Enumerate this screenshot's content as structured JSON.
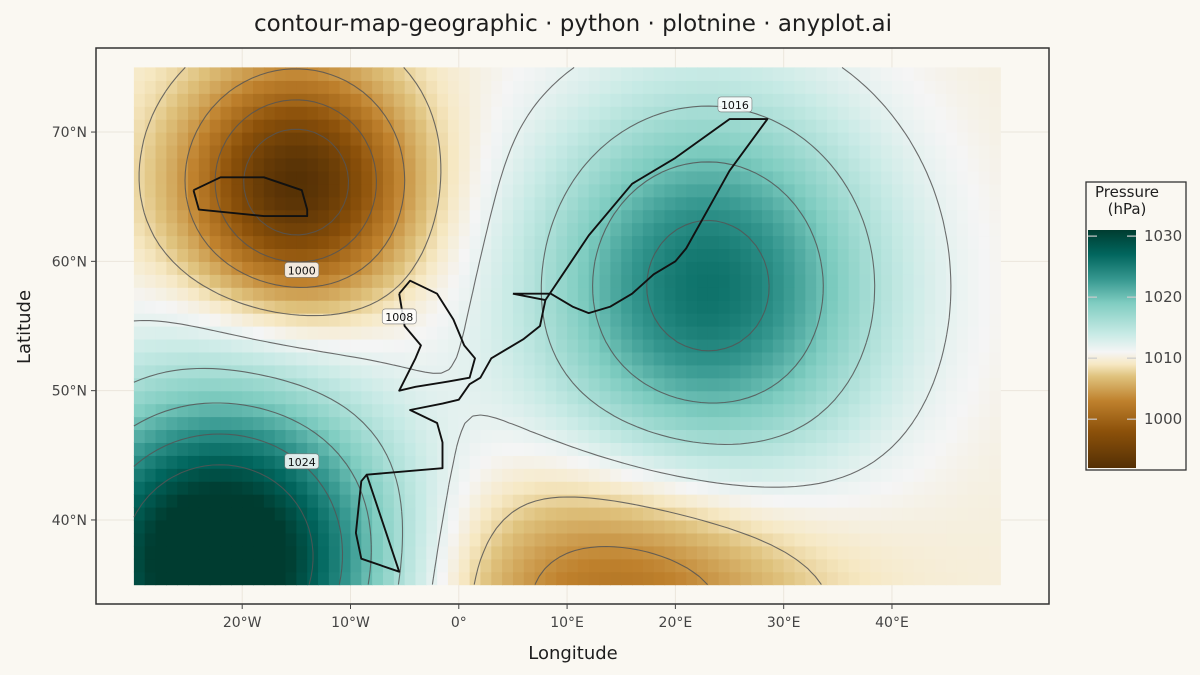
{
  "title": "contour-map-geographic · python · plotnine · anyplot.ai",
  "chart_data": {
    "type": "heatmap",
    "title": "contour-map-geographic · python · plotnine · anyplot.ai",
    "xlabel": "Longitude",
    "ylabel": "Latitude",
    "xlim": [
      -33.5,
      54.5
    ],
    "ylim": [
      33.5,
      76.5
    ],
    "data_extent": {
      "lon": [
        -30,
        50
      ],
      "lat": [
        35,
        75
      ]
    },
    "x_ticks": [
      {
        "value": -20,
        "label": "20°W"
      },
      {
        "value": -10,
        "label": "10°W"
      },
      {
        "value": 0,
        "label": "0°"
      },
      {
        "value": 10,
        "label": "10°E"
      },
      {
        "value": 20,
        "label": "20°E"
      },
      {
        "value": 30,
        "label": "30°E"
      },
      {
        "value": 40,
        "label": "40°E"
      }
    ],
    "y_ticks": [
      {
        "value": 40,
        "label": "40°N"
      },
      {
        "value": 50,
        "label": "50°N"
      },
      {
        "value": 60,
        "label": "60°N"
      },
      {
        "value": 70,
        "label": "70°N"
      }
    ],
    "grid": true,
    "field": {
      "variable": "Pressure",
      "unit": "hPa",
      "base": 1010,
      "centers": [
        {
          "lon": -15,
          "lat": 66,
          "amp": -18,
          "sx": 7,
          "sy": 6
        },
        {
          "lon": -22,
          "lat": 37,
          "amp": 25,
          "sx": 11,
          "sy": 9
        },
        {
          "lon": 23,
          "lat": 58,
          "amp": 16,
          "sx": 11,
          "sy": 10
        },
        {
          "lon": 15,
          "lat": 34,
          "amp": -9,
          "sx": 12,
          "sy": 7
        }
      ]
    },
    "contour_levels": [
      996,
      1000,
      1004,
      1008,
      1012,
      1016,
      1020,
      1024,
      1028
    ],
    "contour_labels": [
      {
        "text": "1000",
        "lon": -14.5,
        "lat": 59.3
      },
      {
        "text": "1008",
        "lon": -5.5,
        "lat": 55.7
      },
      {
        "text": "1016",
        "lon": 25.5,
        "lat": 72.1
      },
      {
        "text": "1024",
        "lon": -14.5,
        "lat": 44.5
      }
    ],
    "coastlines": [
      {
        "name": "iceland",
        "points": [
          [
            -24.5,
            65.5
          ],
          [
            -22,
            66.5
          ],
          [
            -18,
            66.5
          ],
          [
            -14.5,
            65.5
          ],
          [
            -14,
            64
          ],
          [
            -14,
            63.5
          ],
          [
            -18,
            63.5
          ],
          [
            -24,
            64
          ],
          [
            -24.5,
            65.5
          ]
        ]
      },
      {
        "name": "britain",
        "points": [
          [
            -5.5,
            57.5
          ],
          [
            -4.5,
            58.5
          ],
          [
            -2,
            57.5
          ],
          [
            -0.5,
            55.5
          ],
          [
            0.5,
            53.5
          ],
          [
            1.5,
            52.5
          ],
          [
            1,
            51
          ],
          [
            -1,
            50.7
          ],
          [
            -4,
            50.3
          ],
          [
            -5.5,
            50
          ],
          [
            -4,
            52.5
          ],
          [
            -3.5,
            53.5
          ],
          [
            -5,
            55
          ],
          [
            -5.5,
            57.5
          ]
        ]
      },
      {
        "name": "scandinavia",
        "points": [
          [
            5,
            57.5
          ],
          [
            8,
            57
          ],
          [
            7.5,
            55
          ],
          [
            6,
            54
          ],
          [
            3,
            52.5
          ],
          [
            2,
            51
          ],
          [
            1,
            50.5
          ],
          [
            0,
            49.3
          ],
          [
            -1.5,
            49
          ],
          [
            -4.5,
            48.5
          ],
          [
            -2,
            47.5
          ],
          [
            -1.5,
            46
          ],
          [
            -1.5,
            44
          ],
          [
            -8.5,
            43.5
          ],
          [
            -9,
            43
          ],
          [
            -9.5,
            39
          ],
          [
            -9,
            37
          ],
          [
            -5.5,
            36
          ],
          [
            -8.5,
            43.5
          ],
          [
            -1.5,
            44
          ],
          [
            -1.5,
            46
          ],
          [
            -2,
            47.5
          ],
          [
            -4.5,
            48.5
          ],
          [
            -1.5,
            49
          ],
          [
            0,
            49.3
          ],
          [
            1,
            50.5
          ],
          [
            2,
            51
          ],
          [
            3,
            52.5
          ],
          [
            6,
            54
          ],
          [
            7.5,
            55
          ],
          [
            8,
            57
          ],
          [
            10,
            59.5
          ],
          [
            12,
            62
          ],
          [
            16,
            66
          ],
          [
            20,
            68
          ],
          [
            25,
            71
          ],
          [
            28.5,
            71
          ],
          [
            25,
            67
          ],
          [
            23,
            64
          ],
          [
            21,
            61
          ],
          [
            20,
            60
          ],
          [
            18,
            59
          ],
          [
            16,
            57.5
          ],
          [
            14,
            56.5
          ],
          [
            12,
            56
          ],
          [
            10.5,
            56.5
          ],
          [
            8.5,
            57.5
          ],
          [
            5,
            57.5
          ]
        ]
      }
    ],
    "colorbar": {
      "title": "Pressure\n(hPa)",
      "min": 992,
      "max": 1031,
      "ticks": [
        1000,
        1010,
        1020,
        1030
      ],
      "stops": [
        {
          "v": 992,
          "c": "#543005"
        },
        {
          "v": 998,
          "c": "#8c510a"
        },
        {
          "v": 1003,
          "c": "#bf812d"
        },
        {
          "v": 1007,
          "c": "#dfc27d"
        },
        {
          "v": 1009,
          "c": "#f6e8c3"
        },
        {
          "v": 1011,
          "c": "#f5f5f5"
        },
        {
          "v": 1014,
          "c": "#c7eae5"
        },
        {
          "v": 1019,
          "c": "#80cdc1"
        },
        {
          "v": 1023,
          "c": "#35978f"
        },
        {
          "v": 1027,
          "c": "#01665e"
        },
        {
          "v": 1031,
          "c": "#003c30"
        }
      ]
    }
  },
  "colors": {
    "background": "#faf8f2",
    "panel_border": "#333333",
    "grid": "#ebe6dc",
    "contour": "#555555",
    "coastline": "#111111"
  }
}
